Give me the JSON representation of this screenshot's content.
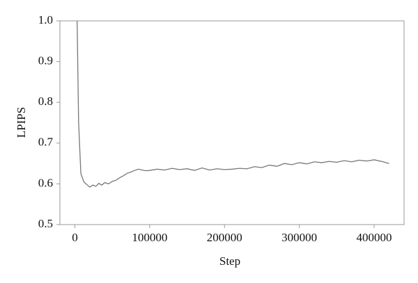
{
  "chart_data": {
    "type": "line",
    "x_label": "Step",
    "y_label": "LPIPS",
    "x": [
      3000,
      5000,
      8000,
      12000,
      16000,
      20000,
      24000,
      28000,
      32000,
      36000,
      40000,
      45000,
      50000,
      55000,
      60000,
      65000,
      70000,
      75000,
      80000,
      85000,
      90000,
      95000,
      100000,
      110000,
      120000,
      130000,
      140000,
      150000,
      160000,
      170000,
      180000,
      190000,
      200000,
      210000,
      220000,
      230000,
      240000,
      250000,
      260000,
      270000,
      280000,
      290000,
      300000,
      310000,
      320000,
      330000,
      340000,
      350000,
      360000,
      370000,
      380000,
      390000,
      400000,
      410000,
      420000
    ],
    "series": [
      {
        "color": "#777777",
        "values": [
          1.0,
          0.75,
          0.625,
          0.605,
          0.598,
          0.592,
          0.597,
          0.594,
          0.601,
          0.597,
          0.603,
          0.6,
          0.606,
          0.609,
          0.615,
          0.62,
          0.626,
          0.629,
          0.633,
          0.636,
          0.634,
          0.632,
          0.633,
          0.636,
          0.634,
          0.638,
          0.635,
          0.637,
          0.633,
          0.639,
          0.634,
          0.637,
          0.635,
          0.636,
          0.638,
          0.637,
          0.642,
          0.64,
          0.646,
          0.643,
          0.65,
          0.647,
          0.652,
          0.649,
          0.654,
          0.652,
          0.655,
          0.653,
          0.657,
          0.654,
          0.658,
          0.656,
          0.659,
          0.655,
          0.65
        ]
      }
    ],
    "xlim": [
      -20000,
      440000
    ],
    "ylim": [
      0.5,
      1.0
    ],
    "xticks": [
      0,
      100000,
      200000,
      300000,
      400000
    ],
    "yticks": [
      {
        "value": 0.5,
        "label": "0.5"
      },
      {
        "value": 0.6,
        "label": "0.6"
      },
      {
        "value": 0.7,
        "label": "0.7"
      },
      {
        "value": 0.8,
        "label": "0.8"
      },
      {
        "value": 0.9,
        "label": "0.9"
      },
      {
        "value": 1.0,
        "label": "1.0"
      }
    ]
  }
}
